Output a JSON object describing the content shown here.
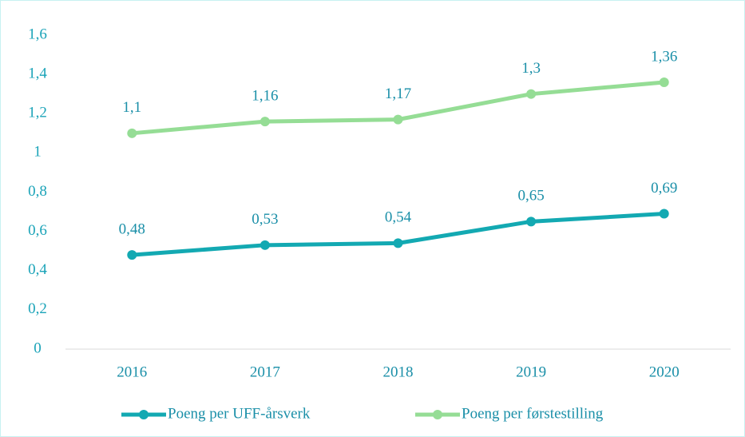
{
  "chart_data": {
    "type": "line",
    "categories": [
      "2016",
      "2017",
      "2018",
      "2019",
      "2020"
    ],
    "series": [
      {
        "name": "Poeng per UFF-årsverk",
        "color": "#13a9b2",
        "values": [
          0.48,
          0.53,
          0.54,
          0.65,
          0.69
        ],
        "value_labels": [
          "0,48",
          "0,53",
          "0,54",
          "0,65",
          "0,69"
        ]
      },
      {
        "name": "Poeng per førstestilling",
        "color": "#95dd95",
        "values": [
          1.1,
          1.16,
          1.17,
          1.3,
          1.36
        ],
        "value_labels": [
          "1,1",
          "1,16",
          "1,17",
          "1,3",
          "1,36"
        ]
      }
    ],
    "ylim": [
      0,
      1.6
    ],
    "yticks": [
      0,
      {
        "value": 0.2,
        "label": "0,2"
      },
      {
        "value": 0.4,
        "label": "0,4"
      },
      {
        "value": 0.6,
        "label": "0,6"
      },
      {
        "value": 0.8,
        "label": "0,8"
      },
      1,
      {
        "value": 1.2,
        "label": "1,2"
      },
      {
        "value": 1.4,
        "label": "1,4"
      },
      {
        "value": 1.6,
        "label": "1,6"
      }
    ],
    "grid": false,
    "legend": "bottom"
  }
}
